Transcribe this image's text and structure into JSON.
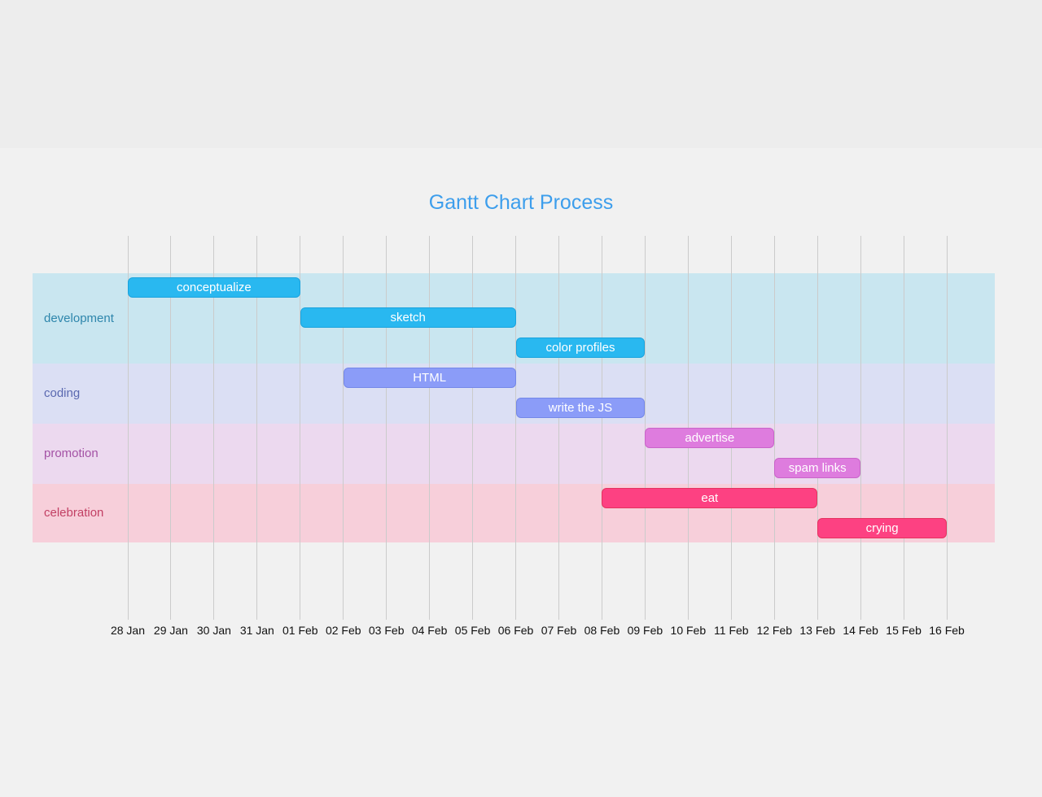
{
  "page": {
    "top_band_color": "#ededed",
    "background_color": "#f1f1f1"
  },
  "chart_data": {
    "type": "gantt",
    "title": "Gantt Chart Process",
    "title_color": "#3d9eec",
    "grid": true,
    "grid_color": "#cbcbcb",
    "axis_text_color": "#111111",
    "task_text_color": "#ffffff",
    "legend_position": "none",
    "x_axis": {
      "tick_labels": [
        "28 Jan",
        "29 Jan",
        "30 Jan",
        "31 Jan",
        "01 Feb",
        "02 Feb",
        "03 Feb",
        "04 Feb",
        "05 Feb",
        "06 Feb",
        "07 Feb",
        "08 Feb",
        "09 Feb",
        "10 Feb",
        "11 Feb",
        "12 Feb",
        "13 Feb",
        "14 Feb",
        "15 Feb",
        "16 Feb"
      ]
    },
    "sections": [
      {
        "name": "development",
        "label_color": "#2e86ac",
        "band_color": "#c9e6f0",
        "bar_color": "#29b8f0",
        "bar_border_color": "#1aa3dd",
        "tasks": [
          {
            "label": "conceptualize",
            "start": "28 Jan",
            "end": "01 Feb",
            "start_index": 0,
            "end_index": 4
          },
          {
            "label": "sketch",
            "start": "01 Feb",
            "end": "06 Feb",
            "start_index": 4,
            "end_index": 9
          },
          {
            "label": "color profiles",
            "start": "06 Feb",
            "end": "09 Feb",
            "start_index": 9,
            "end_index": 12
          }
        ]
      },
      {
        "name": "coding",
        "label_color": "#5a68b0",
        "band_color": "#dbdff4",
        "bar_color": "#8b9cf8",
        "bar_border_color": "#7487e8",
        "tasks": [
          {
            "label": "HTML",
            "start": "02 Feb",
            "end": "06 Feb",
            "start_index": 5,
            "end_index": 9
          },
          {
            "label": "write the JS",
            "start": "06 Feb",
            "end": "09 Feb",
            "start_index": 9,
            "end_index": 12
          }
        ]
      },
      {
        "name": "promotion",
        "label_color": "#a452a5",
        "band_color": "#ecd9ef",
        "bar_color": "#de7cde",
        "bar_border_color": "#c964c9",
        "tasks": [
          {
            "label": "advertise",
            "start": "09 Feb",
            "end": "12 Feb",
            "start_index": 12,
            "end_index": 15
          },
          {
            "label": "spam links",
            "start": "12 Feb",
            "end": "14 Feb",
            "start_index": 15,
            "end_index": 17
          }
        ]
      },
      {
        "name": "celebration",
        "label_color": "#c24064",
        "band_color": "#f7cfda",
        "bar_color": "#fd4182",
        "bar_border_color": "#e5335f",
        "tasks": [
          {
            "label": "eat",
            "start": "08 Feb",
            "end": "13 Feb",
            "start_index": 11,
            "end_index": 16
          },
          {
            "label": "crying",
            "start": "13 Feb",
            "end": "16 Feb",
            "start_index": 16,
            "end_index": 19
          }
        ]
      }
    ]
  }
}
